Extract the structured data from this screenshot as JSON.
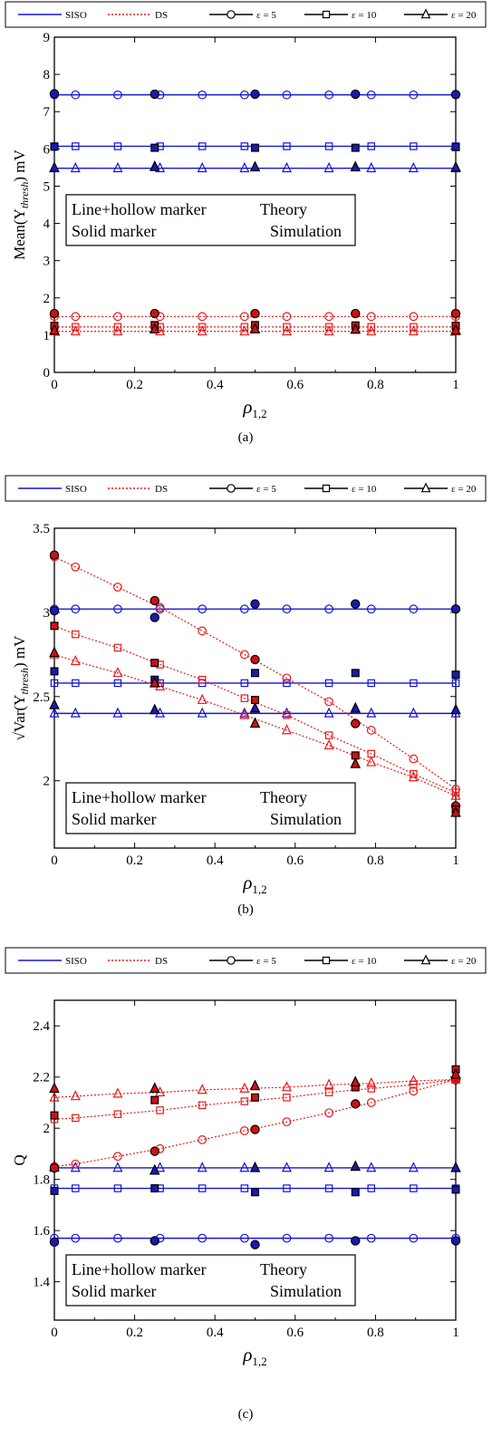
{
  "legend": {
    "items": [
      {
        "label": "SISO",
        "color": "#1515d4",
        "dash": "solid",
        "marker": "none"
      },
      {
        "label": "DS",
        "color": "#e8191b",
        "dash": "dotted",
        "marker": "none"
      },
      {
        "label": "ε = 5",
        "color": "#000000",
        "dash": "solid",
        "marker": "circle"
      },
      {
        "label": "ε = 10",
        "color": "#000000",
        "dash": "solid",
        "marker": "square"
      },
      {
        "label": "ε = 20",
        "color": "#000000",
        "dash": "solid",
        "marker": "triangle"
      }
    ]
  },
  "note": {
    "line1_left": "Line+hollow marker",
    "line1_right": "Theory",
    "line2_left": "Solid marker",
    "line2_right": "Simulation"
  },
  "colors": {
    "siso": "#1515d4",
    "siso_fill": "#1a1ab0",
    "ds": "#e8191b",
    "ds_fill": "#d01010"
  },
  "chart_data": [
    {
      "type": "line",
      "caption": "(a)",
      "xlabel_main": "ρ",
      "xlabel_sub": "1,2",
      "ylabel": "Mean(Y",
      "ylabel_sub": "thresh",
      "ylabel_tail": ") mV",
      "xlim": [
        0,
        1
      ],
      "ylim": [
        0,
        9
      ],
      "xticks": [
        0,
        0.2,
        0.4,
        0.6,
        0.8,
        1
      ],
      "xtick_labels": [
        "0",
        "0.2",
        "0.4",
        "0.6",
        "0.8",
        "1"
      ],
      "yticks": [
        0,
        1,
        2,
        3,
        4,
        5,
        6,
        7,
        8,
        9
      ],
      "ytick_labels": [
        "0",
        "1",
        "2",
        "3",
        "4",
        "5",
        "6",
        "7",
        "8",
        "9"
      ],
      "legend_box": "middle-left",
      "theory_x": [
        0,
        0.0526,
        0.1579,
        0.2632,
        0.3684,
        0.4737,
        0.5789,
        0.6842,
        0.7895,
        0.8947,
        1
      ],
      "sim_x": [
        0,
        0.25,
        0.5,
        0.75,
        1
      ],
      "series": [
        {
          "group": "SISO",
          "marker": "circle",
          "theory": [
            7.45,
            7.45,
            7.45,
            7.45,
            7.45,
            7.45,
            7.45,
            7.45,
            7.45,
            7.45,
            7.45
          ],
          "sim": [
            7.48,
            7.47,
            7.47,
            7.47,
            7.46
          ]
        },
        {
          "group": "SISO",
          "marker": "square",
          "theory": [
            6.07,
            6.07,
            6.07,
            6.07,
            6.07,
            6.07,
            6.07,
            6.07,
            6.07,
            6.07,
            6.07
          ],
          "sim": [
            6.06,
            6.03,
            6.03,
            6.03,
            6.05
          ]
        },
        {
          "group": "SISO",
          "marker": "triangle",
          "theory": [
            5.48,
            5.48,
            5.48,
            5.48,
            5.48,
            5.48,
            5.48,
            5.48,
            5.48,
            5.48,
            5.48
          ],
          "sim": [
            5.49,
            5.52,
            5.51,
            5.51,
            5.5
          ]
        },
        {
          "group": "DS",
          "marker": "circle",
          "theory": [
            1.5,
            1.5,
            1.5,
            1.5,
            1.5,
            1.5,
            1.5,
            1.5,
            1.5,
            1.5,
            1.5
          ],
          "sim": [
            1.58,
            1.58,
            1.58,
            1.58,
            1.58
          ]
        },
        {
          "group": "DS",
          "marker": "square",
          "theory": [
            1.22,
            1.22,
            1.22,
            1.22,
            1.22,
            1.22,
            1.22,
            1.22,
            1.22,
            1.22,
            1.22
          ],
          "sim": [
            1.25,
            1.27,
            1.27,
            1.26,
            1.25
          ]
        },
        {
          "group": "DS",
          "marker": "triangle",
          "theory": [
            1.1,
            1.1,
            1.1,
            1.1,
            1.1,
            1.1,
            1.1,
            1.1,
            1.1,
            1.1,
            1.1
          ],
          "sim": [
            1.13,
            1.16,
            1.16,
            1.15,
            1.13
          ]
        }
      ]
    },
    {
      "type": "line",
      "caption": "(b)",
      "xlabel_main": "ρ",
      "xlabel_sub": "1,2",
      "ylabel": "√Var(Y",
      "ylabel_sub": "thresh",
      "ylabel_tail": ") mV",
      "xlim": [
        0,
        1
      ],
      "ylim": [
        1.6,
        3.5
      ],
      "xticks": [
        0,
        0.2,
        0.4,
        0.6,
        0.8,
        1
      ],
      "xtick_labels": [
        "0",
        "0.2",
        "0.4",
        "0.6",
        "0.8",
        "1"
      ],
      "yticks": [
        2,
        2.5,
        3,
        3.5
      ],
      "ytick_labels": [
        "2",
        "2.5",
        "3",
        "3.5"
      ],
      "legend_box": "bottom-left",
      "theory_x": [
        0,
        0.0526,
        0.1579,
        0.2632,
        0.3684,
        0.4737,
        0.5789,
        0.6842,
        0.7895,
        0.8947,
        1
      ],
      "sim_x": [
        0,
        0.25,
        0.5,
        0.75,
        1
      ],
      "series": [
        {
          "group": "SISO",
          "marker": "circle",
          "theory": [
            3.02,
            3.02,
            3.02,
            3.02,
            3.02,
            3.02,
            3.02,
            3.02,
            3.02,
            3.02,
            3.02
          ],
          "sim": [
            3.01,
            2.97,
            3.05,
            3.05,
            3.02
          ]
        },
        {
          "group": "SISO",
          "marker": "square",
          "theory": [
            2.58,
            2.58,
            2.58,
            2.58,
            2.58,
            2.58,
            2.58,
            2.58,
            2.58,
            2.58,
            2.58
          ],
          "sim": [
            2.65,
            2.6,
            2.64,
            2.64,
            2.63
          ]
        },
        {
          "group": "SISO",
          "marker": "triangle",
          "theory": [
            2.4,
            2.4,
            2.4,
            2.4,
            2.4,
            2.4,
            2.4,
            2.4,
            2.4,
            2.4,
            2.4
          ],
          "sim": [
            2.45,
            2.42,
            2.43,
            2.43,
            2.42
          ]
        },
        {
          "group": "DS",
          "marker": "circle",
          "theory": [
            3.33,
            3.27,
            3.15,
            3.03,
            2.89,
            2.75,
            2.61,
            2.47,
            2.3,
            2.13,
            1.95
          ],
          "sim": [
            3.34,
            3.07,
            2.72,
            2.34,
            1.85
          ]
        },
        {
          "group": "DS",
          "marker": "square",
          "theory": [
            2.92,
            2.87,
            2.79,
            2.69,
            2.6,
            2.49,
            2.39,
            2.27,
            2.16,
            2.04,
            1.93
          ],
          "sim": [
            2.92,
            2.7,
            2.48,
            2.15,
            1.83
          ]
        },
        {
          "group": "DS",
          "marker": "triangle",
          "theory": [
            2.75,
            2.71,
            2.64,
            2.56,
            2.48,
            2.39,
            2.3,
            2.21,
            2.11,
            2.02,
            1.91
          ],
          "sim": [
            2.76,
            2.58,
            2.34,
            2.1,
            1.81
          ]
        }
      ]
    },
    {
      "type": "line",
      "caption": "(c)",
      "xlabel_main": "ρ",
      "xlabel_sub": "1,2",
      "ylabel": "Q",
      "ylabel_sub": "",
      "ylabel_tail": "",
      "xlim": [
        0,
        1
      ],
      "ylim": [
        1.25,
        2.5
      ],
      "xticks": [
        0,
        0.2,
        0.4,
        0.6,
        0.8,
        1
      ],
      "xtick_labels": [
        "0",
        "0.2",
        "0.4",
        "0.6",
        "0.8",
        "1"
      ],
      "yticks": [
        1.4,
        1.6,
        1.8,
        2,
        2.2,
        2.4
      ],
      "ytick_labels": [
        "1.4",
        "1.6",
        "1.8",
        "2",
        "2.2",
        "2.4"
      ],
      "legend_box": "bottom-left",
      "theory_x": [
        0,
        0.0526,
        0.1579,
        0.2632,
        0.3684,
        0.4737,
        0.5789,
        0.6842,
        0.7895,
        0.8947,
        1
      ],
      "sim_x": [
        0,
        0.25,
        0.5,
        0.75,
        1
      ],
      "series": [
        {
          "group": "SISO",
          "marker": "circle",
          "theory": [
            1.57,
            1.57,
            1.57,
            1.57,
            1.57,
            1.57,
            1.57,
            1.57,
            1.57,
            1.57,
            1.57
          ],
          "sim": [
            1.555,
            1.56,
            1.545,
            1.56,
            1.56
          ]
        },
        {
          "group": "SISO",
          "marker": "square",
          "theory": [
            1.765,
            1.765,
            1.765,
            1.765,
            1.765,
            1.765,
            1.765,
            1.765,
            1.765,
            1.765,
            1.765
          ],
          "sim": [
            1.755,
            1.765,
            1.75,
            1.75,
            1.76
          ]
        },
        {
          "group": "SISO",
          "marker": "triangle",
          "theory": [
            1.845,
            1.845,
            1.845,
            1.845,
            1.845,
            1.845,
            1.845,
            1.845,
            1.845,
            1.845,
            1.845
          ],
          "sim": [
            1.85,
            1.835,
            1.845,
            1.85,
            1.845
          ]
        },
        {
          "group": "DS",
          "marker": "circle",
          "theory": [
            1.85,
            1.86,
            1.89,
            1.92,
            1.955,
            1.99,
            2.025,
            2.06,
            2.1,
            2.145,
            2.19
          ],
          "sim": [
            1.845,
            1.91,
            1.995,
            2.095,
            2.19
          ]
        },
        {
          "group": "DS",
          "marker": "square",
          "theory": [
            2.035,
            2.04,
            2.055,
            2.07,
            2.09,
            2.105,
            2.12,
            2.14,
            2.155,
            2.17,
            2.19
          ],
          "sim": [
            2.05,
            2.11,
            2.12,
            2.16,
            2.23
          ]
        },
        {
          "group": "DS",
          "marker": "triangle",
          "theory": [
            2.12,
            2.125,
            2.135,
            2.14,
            2.15,
            2.155,
            2.16,
            2.17,
            2.175,
            2.185,
            2.19
          ],
          "sim": [
            2.155,
            2.155,
            2.165,
            2.18,
            2.21
          ]
        }
      ]
    }
  ]
}
